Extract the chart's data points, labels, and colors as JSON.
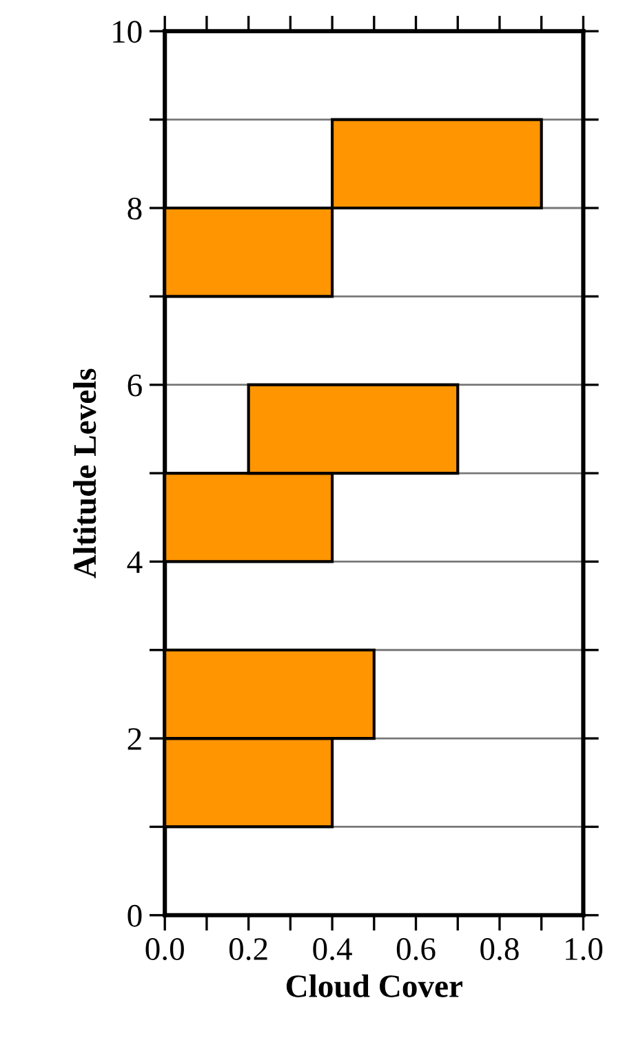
{
  "chart_data": {
    "type": "bar",
    "orientation": "horizontal",
    "xlabel": "Cloud Cover",
    "ylabel": "Altitude Levels",
    "x": [
      1.5,
      2.5,
      4.5,
      5.5,
      7.5,
      8.5
    ],
    "base": [
      0,
      0,
      0,
      0.2,
      0,
      0.4
    ],
    "values": [
      0.4,
      0.5,
      0.4,
      0.5,
      0.4,
      0.5
    ],
    "color": "#ff9500",
    "xlim": [
      0,
      1
    ],
    "xticks": [
      {
        "value": 0,
        "label": "0.0"
      },
      {
        "value": 0.1,
        "label": null
      },
      {
        "value": 0.2,
        "label": "0.2"
      },
      {
        "value": 0.3,
        "label": null
      },
      {
        "value": 0.4,
        "label": "0.4"
      },
      {
        "value": 0.5,
        "label": null
      },
      {
        "value": 0.6,
        "label": "0.6"
      },
      {
        "value": 0.7,
        "label": null
      },
      {
        "value": 0.8,
        "label": "0.8"
      },
      {
        "value": 0.9,
        "label": null
      },
      {
        "value": 1.0,
        "label": "1.0"
      }
    ],
    "ylim": [
      0,
      10
    ],
    "yticks": [
      0,
      {
        "value": 1,
        "label": null
      },
      2,
      {
        "value": 3,
        "label": null
      },
      4,
      {
        "value": 5,
        "label": null
      },
      6,
      {
        "value": 7,
        "label": null
      },
      8,
      {
        "value": 9,
        "label": null
      },
      10
    ],
    "grid": "y"
  }
}
